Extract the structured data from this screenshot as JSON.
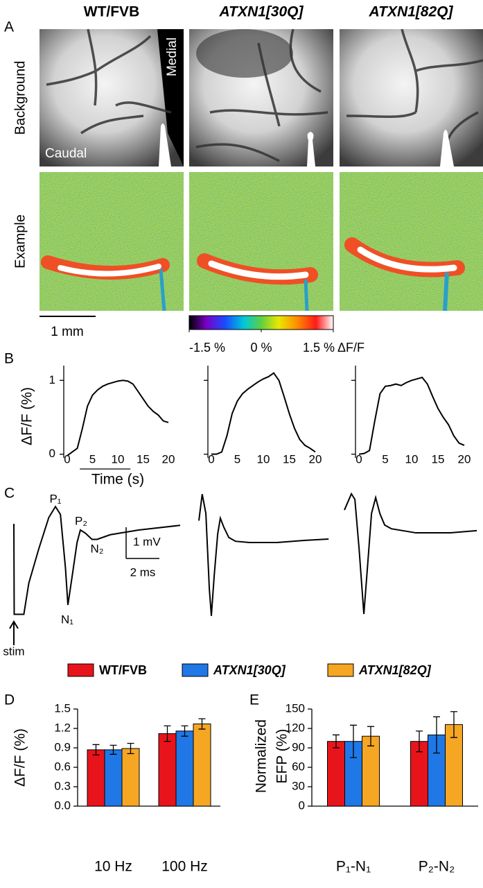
{
  "column_titles": [
    "WT/FVB",
    "ATXN1[30Q]",
    "ATXN1[82Q]"
  ],
  "panel_labels": [
    "A",
    "B",
    "C",
    "D",
    "E"
  ],
  "panel_a": {
    "row_labels": [
      "Background",
      "Example"
    ],
    "medial_label": "Medial",
    "caudal_label": "Caudal",
    "scale_label": "1 mm",
    "colorbar": {
      "lim": [
        -1.5,
        1.5
      ],
      "ticks": [
        {
          "value": -1.5,
          "label": "-1.5 %"
        },
        {
          "value": 0,
          "label": "0 %"
        },
        {
          "value": 1.5,
          "label": "1.5 % ΔF/F"
        }
      ]
    }
  },
  "chart_data": [
    {
      "type": "line",
      "ylabel": "ΔF/F (%)",
      "xlabel": "Time (s)",
      "color": "#000000",
      "x": [
        0,
        1,
        2,
        3,
        4,
        5,
        6,
        7,
        8,
        9,
        10,
        11,
        12,
        13,
        14,
        15,
        16,
        17,
        18,
        19,
        20
      ],
      "values": [
        -0.02,
        0.03,
        0.08,
        0.35,
        0.65,
        0.8,
        0.87,
        0.92,
        0.95,
        0.97,
        0.99,
        1.0,
        0.99,
        0.95,
        0.85,
        0.75,
        0.65,
        0.58,
        0.53,
        0.45,
        0.43
      ],
      "xlim": [
        0,
        20
      ],
      "xticks": [
        0,
        5,
        10,
        15,
        20
      ],
      "ylim": [
        -0.05,
        1.2
      ],
      "yticks": [
        0,
        1
      ],
      "stim_interval": [
        2.5,
        12.5
      ]
    },
    {
      "type": "line",
      "color": "#000000",
      "ytick_labels": false,
      "x": [
        0,
        1,
        2,
        3,
        4,
        5,
        6,
        7,
        8,
        9,
        10,
        11,
        12,
        13,
        14,
        15,
        16,
        17,
        18,
        19,
        20
      ],
      "values": [
        0.0,
        0.0,
        0.03,
        0.25,
        0.55,
        0.72,
        0.82,
        0.88,
        0.93,
        0.98,
        1.02,
        1.05,
        1.1,
        1.0,
        0.78,
        0.55,
        0.35,
        0.2,
        0.12,
        0.08,
        0.03
      ],
      "xlim": [
        0,
        20
      ],
      "xticks": [
        0,
        5,
        10,
        15,
        20
      ],
      "ylim": [
        -0.05,
        1.2
      ],
      "yticks": [
        0,
        1
      ]
    },
    {
      "type": "line",
      "color": "#000000",
      "ytick_labels": false,
      "x": [
        0,
        1,
        2,
        3,
        4,
        5,
        6,
        7,
        8,
        9,
        10,
        11,
        12,
        13,
        14,
        15,
        16,
        17,
        18,
        19,
        20
      ],
      "values": [
        0.0,
        0.01,
        0.05,
        0.45,
        0.82,
        0.92,
        0.93,
        0.95,
        0.93,
        0.97,
        1.0,
        1.02,
        1.04,
        0.95,
        0.78,
        0.62,
        0.5,
        0.4,
        0.25,
        0.15,
        0.12
      ],
      "xlim": [
        0,
        20
      ],
      "xticks": [
        0,
        5,
        10,
        15,
        20
      ],
      "ylim": [
        -0.05,
        1.2
      ],
      "yticks": [
        0,
        1
      ]
    },
    {
      "type": "trace",
      "color": "#000000",
      "x": [
        0,
        0.02,
        0.6,
        0.9,
        1.5,
        2.1,
        2.5,
        2.8,
        3.1,
        3.25,
        3.5,
        3.8,
        4.0,
        4.3,
        4.7,
        5.0,
        5.8,
        7.5,
        10
      ],
      "values": [
        0,
        -2.9,
        -2.9,
        -1.9,
        -0.8,
        0.2,
        0.55,
        0.3,
        -1.4,
        -2.6,
        -1.7,
        -0.6,
        -0.2,
        -0.3,
        -0.5,
        -0.5,
        -0.35,
        -0.2,
        -0.05
      ],
      "annotations": [
        "P₁",
        "P₂",
        "N₁",
        "N₂",
        "stim"
      ],
      "scale_bar": {
        "x": 2,
        "y": 1,
        "x_label": "2 ms",
        "y_label": "1 mV"
      }
    },
    {
      "type": "trace",
      "color": "#000000",
      "x": [
        0,
        0.2,
        0.42,
        0.63,
        0.75,
        0.92,
        1.13,
        1.29,
        1.5,
        1.8,
        2.2,
        3.04,
        4.7,
        6.4,
        7.8
      ],
      "values": [
        0.1,
        0.95,
        0.33,
        -2.1,
        -2.95,
        -1.67,
        -0.33,
        0.18,
        -0.11,
        -0.44,
        -0.56,
        -0.6,
        -0.6,
        -0.53,
        -0.49
      ]
    },
    {
      "type": "trace",
      "color": "#000000",
      "x": [
        0,
        0.42,
        0.63,
        0.88,
        1.17,
        1.38,
        1.63,
        1.88,
        2.13,
        2.42,
        2.83,
        4.29,
        6.38,
        7.96
      ],
      "values": [
        0.44,
        0.96,
        0.78,
        -0.78,
        -2.89,
        -1.44,
        0.33,
        0.84,
        0.33,
        -0.04,
        -0.16,
        -0.29,
        -0.29,
        -0.22
      ]
    },
    {
      "type": "bar",
      "legend": true,
      "ylabel": "ΔF/F (%)",
      "categories": [
        "10 Hz",
        "100 Hz"
      ],
      "series": [
        {
          "name": "WT/FVB",
          "color": "#e8141b",
          "values": [
            0.87,
            1.12
          ],
          "errors": [
            0.08,
            0.12
          ]
        },
        {
          "name": "ATXN1[30Q]",
          "color": "#1f78e6",
          "values": [
            0.87,
            1.16
          ],
          "errors": [
            0.07,
            0.08
          ]
        },
        {
          "name": "ATXN1[82Q]",
          "color": "#f5a623",
          "values": [
            0.89,
            1.27
          ],
          "errors": [
            0.08,
            0.08
          ]
        }
      ],
      "ylim": [
        0,
        1.5
      ],
      "yticks": [
        {
          "value": 0,
          "label": "0.0"
        },
        0.3,
        0.6,
        0.9,
        1.2,
        1.5
      ]
    },
    {
      "type": "bar",
      "ylabel": [
        "Normalized",
        "EFP (%)"
      ],
      "categories": [
        "P₁-N₁",
        "P₂-N₂"
      ],
      "series": [
        {
          "color": "#e8141b",
          "values": [
            100,
            100
          ],
          "errors": [
            10,
            16
          ]
        },
        {
          "color": "#1f78e6",
          "values": [
            100,
            110
          ],
          "errors": [
            25,
            28
          ]
        },
        {
          "color": "#f5a623",
          "values": [
            108,
            126
          ],
          "errors": [
            15,
            20
          ]
        }
      ],
      "ylim": [
        0,
        150
      ],
      "yticks": [
        0,
        30,
        60,
        90,
        120,
        150
      ]
    }
  ]
}
